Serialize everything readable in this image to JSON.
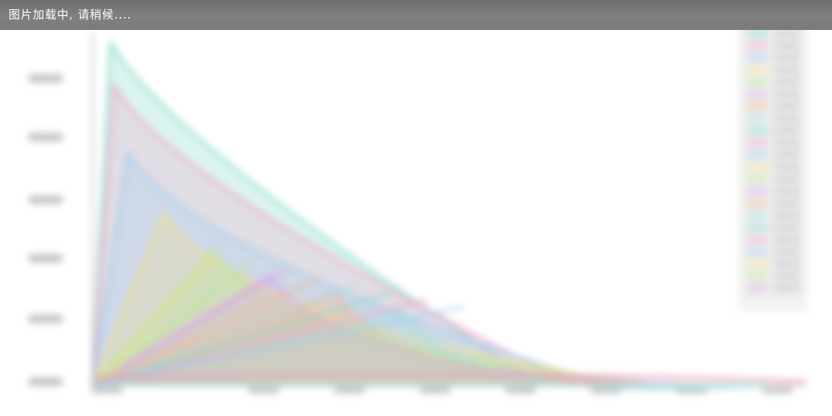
{
  "loading": {
    "text": "图片加载中, 请稍候...."
  },
  "image": {
    "state": "loading-blurred-preview",
    "accent_colors": [
      "#7fd8c6",
      "#f2a0c8",
      "#9ecbf0",
      "#f4e08a",
      "#b9e58f",
      "#d9a7e8",
      "#f7b48a",
      "#a0e0e0"
    ],
    "bar_color": "#7a7a7a"
  }
}
